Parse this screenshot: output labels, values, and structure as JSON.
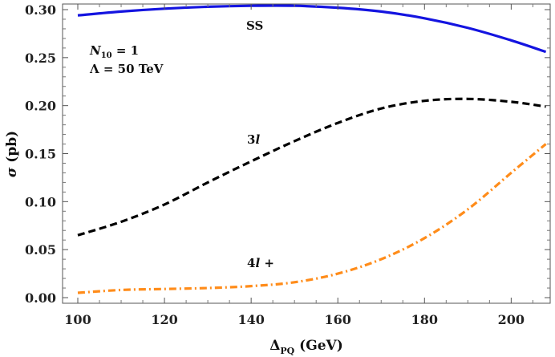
{
  "chart_data": {
    "type": "line",
    "xlabel_main": "Δ",
    "xlabel_sub": "PQ",
    "xlabel_rest": " (GeV)",
    "ylabel_sym": "σ",
    "ylabel_rest": " (pb)",
    "xlim": [
      100,
      209
    ],
    "ylim": [
      0.0,
      0.31
    ],
    "xticks": [
      100,
      120,
      140,
      160,
      180,
      200
    ],
    "yticks": [
      0.0,
      0.05,
      0.1,
      0.15,
      0.2,
      0.25,
      0.3
    ],
    "ytick_labels": [
      "0.00",
      "0.05",
      "0.10",
      "0.15",
      "0.20",
      "0.25",
      "0.30"
    ],
    "grid": false,
    "annotations": {
      "n10_sym": "N",
      "n10_sub": "10",
      "n10_rest": " = 1",
      "lambda": "Λ = 50 TeV"
    },
    "series": [
      {
        "name": "SS",
        "color": "#1414e0",
        "style": "solid",
        "x": [
          100,
          110,
          120,
          130,
          140,
          150,
          160,
          170,
          180,
          190,
          200,
          208
        ],
        "y": [
          0.294,
          0.298,
          0.301,
          0.303,
          0.304,
          0.304,
          0.302,
          0.298,
          0.291,
          0.281,
          0.268,
          0.256
        ]
      },
      {
        "name": "3l",
        "label_num": "3",
        "label_l": "l",
        "color": "#000000",
        "style": "dashed",
        "x": [
          100,
          110,
          120,
          130,
          140,
          150,
          160,
          170,
          180,
          190,
          200,
          208
        ],
        "y": [
          0.065,
          0.079,
          0.097,
          0.12,
          0.142,
          0.163,
          0.182,
          0.197,
          0.205,
          0.207,
          0.204,
          0.199
        ]
      },
      {
        "name": "4l+",
        "label_num": "4",
        "label_l": "l",
        "label_plus": " +",
        "color": "#ff8c1a",
        "style": "dashdot",
        "x": [
          100,
          110,
          120,
          130,
          140,
          150,
          160,
          170,
          180,
          190,
          200,
          208
        ],
        "y": [
          0.005,
          0.008,
          0.009,
          0.01,
          0.012,
          0.016,
          0.025,
          0.04,
          0.062,
          0.092,
          0.13,
          0.16
        ]
      }
    ]
  }
}
